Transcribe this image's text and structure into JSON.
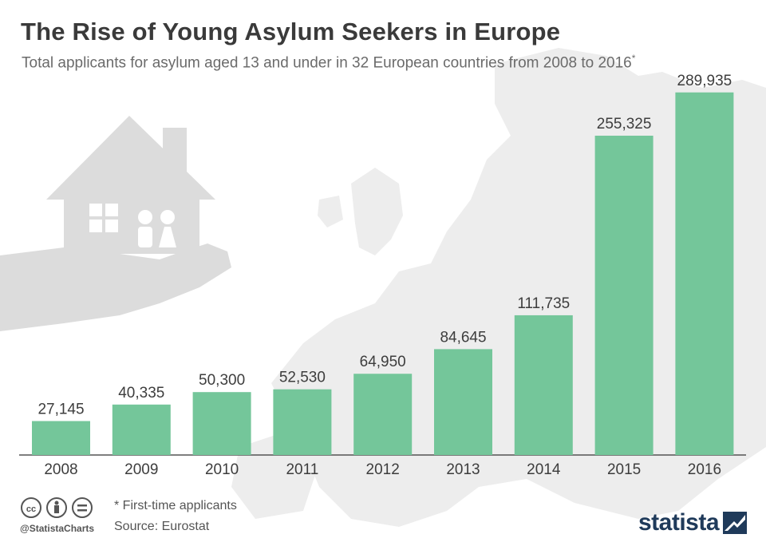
{
  "header": {
    "title": "The Rise of Young Asylum Seekers in Europe",
    "subtitle": "Total applicants for asylum aged 13 and under in 32 European countries from 2008 to 2016",
    "subtitle_marker": "*"
  },
  "footer": {
    "footnote": "* First-time applicants",
    "source": "Source: Eurostat",
    "handle": "@StatistaCharts",
    "brand": "statista",
    "license_icons": [
      "creative-commons-icon",
      "attribution-icon",
      "no-derivatives-icon"
    ]
  },
  "colors": {
    "bar": "#74c69a",
    "background_shape": "#ececec",
    "title": "#3a3a3a",
    "brand": "#1f3a5a"
  },
  "chart_data": {
    "type": "bar",
    "categories": [
      "2008",
      "2009",
      "2010",
      "2011",
      "2012",
      "2013",
      "2014",
      "2015",
      "2016"
    ],
    "values": [
      27145,
      40335,
      50300,
      52530,
      64950,
      84645,
      111735,
      255325,
      289935
    ],
    "value_labels": [
      "27,145",
      "40,335",
      "50,300",
      "52,530",
      "64,950",
      "84,645",
      "111,735",
      "255,325",
      "289,935"
    ],
    "title": "The Rise of Young Asylum Seekers in Europe",
    "xlabel": "",
    "ylabel": "",
    "ylim": [
      0,
      300000
    ],
    "grid": false,
    "legend": "none"
  }
}
